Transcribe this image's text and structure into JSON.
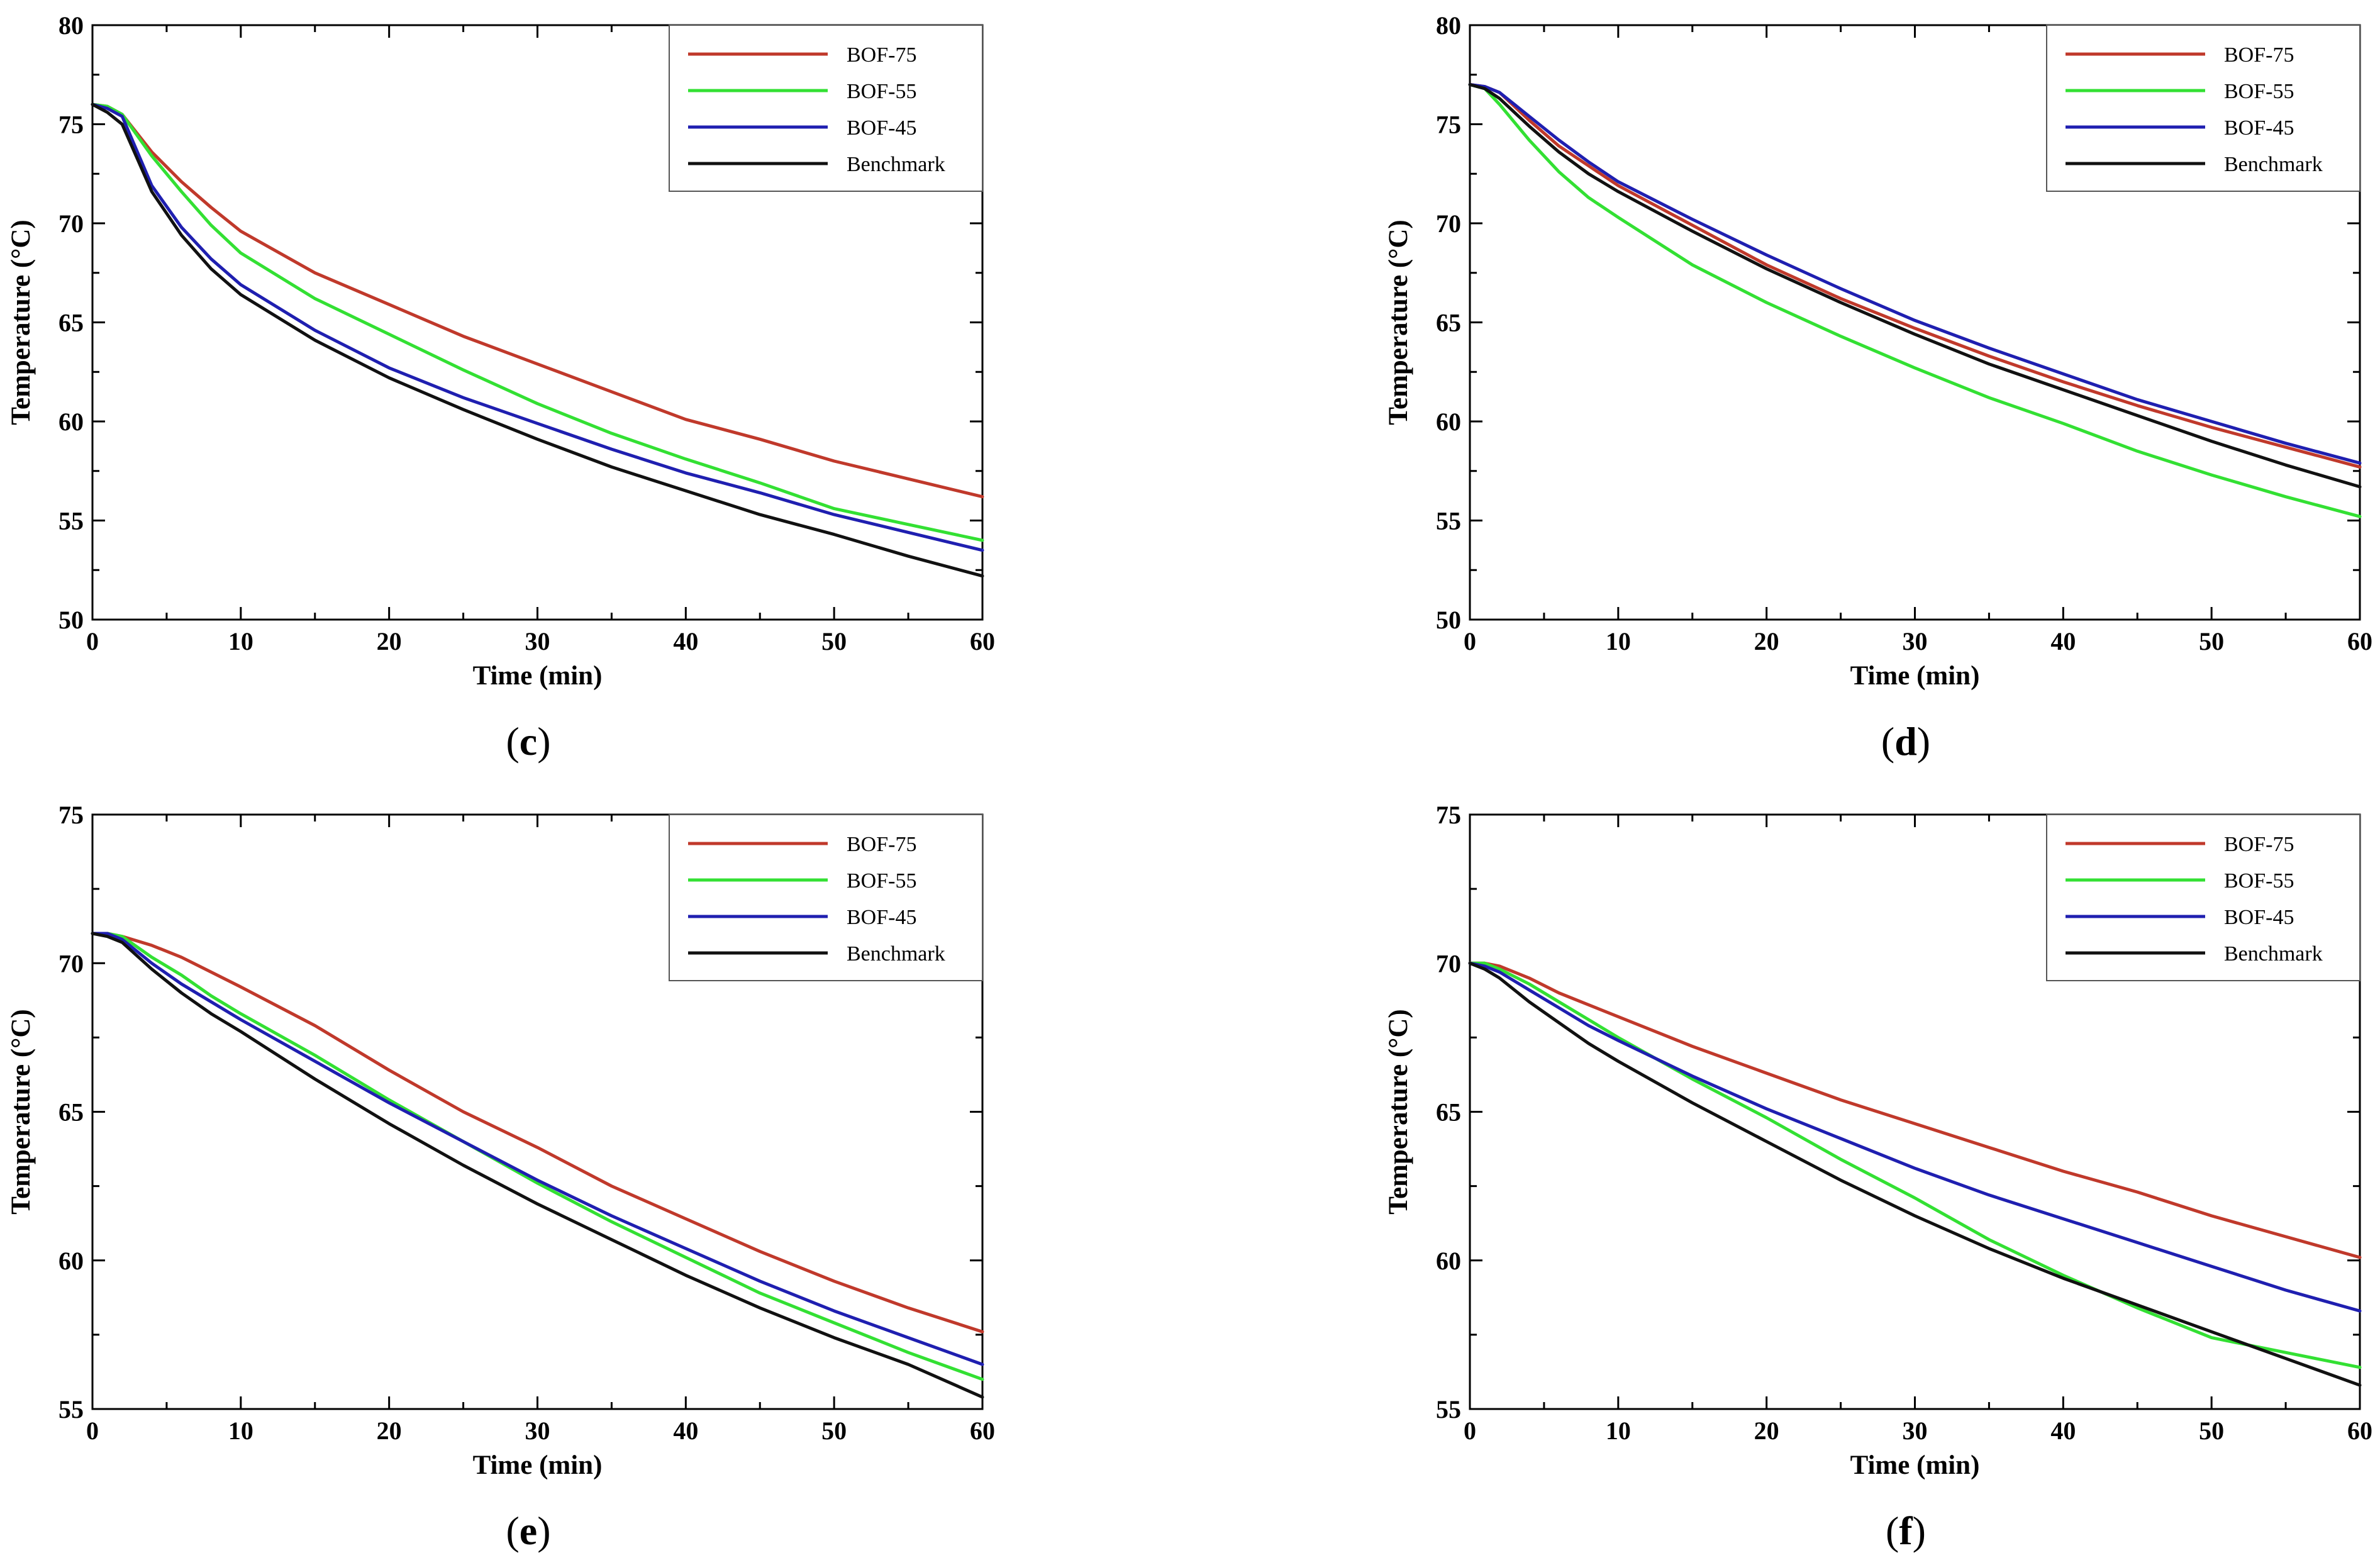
{
  "chart_data": [
    {
      "type": "line",
      "panel": "c",
      "title": "",
      "xlabel": "Time (min)",
      "ylabel": "Temperature (°C)",
      "xlim": [
        0,
        60
      ],
      "ylim": [
        50,
        80
      ],
      "xticks": [
        0,
        10,
        20,
        30,
        40,
        50,
        60
      ],
      "yticks": [
        50,
        55,
        60,
        65,
        70,
        75,
        80
      ],
      "grid": false,
      "legend_position": "top-right",
      "x": [
        0,
        1,
        2,
        4,
        6,
        8,
        10,
        15,
        20,
        25,
        30,
        35,
        40,
        45,
        50,
        55,
        60
      ],
      "series": [
        {
          "name": "BOF-75",
          "color": "#c0392b",
          "values": [
            76.0,
            75.9,
            75.5,
            73.6,
            72.1,
            70.8,
            69.6,
            67.5,
            65.9,
            64.3,
            62.9,
            61.5,
            60.1,
            59.1,
            58.0,
            57.1,
            56.2
          ]
        },
        {
          "name": "BOF-55",
          "color": "#33e033",
          "values": [
            76.0,
            75.9,
            75.5,
            73.4,
            71.6,
            69.9,
            68.5,
            66.2,
            64.4,
            62.6,
            60.9,
            59.4,
            58.1,
            56.9,
            55.6,
            54.8,
            54.0
          ]
        },
        {
          "name": "BOF-45",
          "color": "#1f1fb0",
          "values": [
            76.0,
            75.8,
            75.4,
            71.9,
            69.8,
            68.2,
            66.9,
            64.6,
            62.7,
            61.2,
            59.9,
            58.6,
            57.4,
            56.4,
            55.3,
            54.4,
            53.5
          ]
        },
        {
          "name": "Benchmark",
          "color": "#111111",
          "values": [
            76.0,
            75.6,
            75.0,
            71.6,
            69.4,
            67.7,
            66.4,
            64.1,
            62.2,
            60.6,
            59.1,
            57.7,
            56.5,
            55.3,
            54.3,
            53.2,
            52.2
          ]
        }
      ]
    },
    {
      "type": "line",
      "panel": "d",
      "title": "",
      "xlabel": "Time (min)",
      "ylabel": "Temperature (°C)",
      "xlim": [
        0,
        60
      ],
      "ylim": [
        50,
        80
      ],
      "xticks": [
        0,
        10,
        20,
        30,
        40,
        50,
        60
      ],
      "yticks": [
        50,
        55,
        60,
        65,
        70,
        75,
        80
      ],
      "grid": false,
      "legend_position": "top-right",
      "x": [
        0,
        1,
        2,
        4,
        6,
        8,
        10,
        15,
        20,
        25,
        30,
        35,
        40,
        45,
        50,
        55,
        60
      ],
      "series": [
        {
          "name": "BOF-75",
          "color": "#c0392b",
          "values": [
            77.0,
            76.9,
            76.6,
            75.2,
            73.9,
            72.9,
            71.9,
            69.9,
            67.9,
            66.2,
            64.7,
            63.3,
            62.0,
            60.8,
            59.7,
            58.7,
            57.7
          ]
        },
        {
          "name": "BOF-55",
          "color": "#33e033",
          "values": [
            77.0,
            76.8,
            76.0,
            74.2,
            72.6,
            71.3,
            70.3,
            67.9,
            66.0,
            64.3,
            62.7,
            61.2,
            59.9,
            58.5,
            57.3,
            56.2,
            55.2
          ]
        },
        {
          "name": "BOF-45",
          "color": "#1f1fb0",
          "values": [
            77.0,
            76.9,
            76.6,
            75.4,
            74.2,
            73.1,
            72.1,
            70.2,
            68.4,
            66.7,
            65.1,
            63.7,
            62.4,
            61.1,
            60.0,
            58.9,
            57.9
          ]
        },
        {
          "name": "Benchmark",
          "color": "#111111",
          "values": [
            77.0,
            76.8,
            76.3,
            74.9,
            73.6,
            72.5,
            71.6,
            69.6,
            67.7,
            66.0,
            64.4,
            62.9,
            61.6,
            60.3,
            59.0,
            57.8,
            56.7
          ]
        }
      ]
    },
    {
      "type": "line",
      "panel": "e",
      "title": "",
      "xlabel": "Time (min)",
      "ylabel": "Temperature (°C)",
      "xlim": [
        0,
        60
      ],
      "ylim": [
        55,
        75
      ],
      "xticks": [
        0,
        10,
        20,
        30,
        40,
        50,
        60
      ],
      "yticks": [
        55,
        60,
        65,
        70,
        75
      ],
      "grid": false,
      "legend_position": "top-right",
      "x": [
        0,
        1,
        2,
        4,
        6,
        8,
        10,
        15,
        20,
        25,
        30,
        35,
        40,
        45,
        50,
        55,
        60
      ],
      "series": [
        {
          "name": "BOF-75",
          "color": "#c0392b",
          "values": [
            71.0,
            71.0,
            70.9,
            70.6,
            70.2,
            69.7,
            69.2,
            67.9,
            66.4,
            65.0,
            63.8,
            62.5,
            61.4,
            60.3,
            59.3,
            58.4,
            57.6
          ]
        },
        {
          "name": "BOF-55",
          "color": "#33e033",
          "values": [
            71.0,
            71.0,
            70.9,
            70.2,
            69.6,
            68.9,
            68.3,
            66.9,
            65.4,
            64.0,
            62.6,
            61.3,
            60.1,
            58.9,
            57.9,
            56.9,
            56.0
          ]
        },
        {
          "name": "BOF-45",
          "color": "#1f1fb0",
          "values": [
            71.0,
            71.0,
            70.8,
            70.0,
            69.3,
            68.7,
            68.1,
            66.7,
            65.3,
            64.0,
            62.7,
            61.5,
            60.4,
            59.3,
            58.3,
            57.4,
            56.5
          ]
        },
        {
          "name": "Benchmark",
          "color": "#111111",
          "values": [
            71.0,
            70.9,
            70.7,
            69.8,
            69.0,
            68.3,
            67.7,
            66.1,
            64.6,
            63.2,
            61.9,
            60.7,
            59.5,
            58.4,
            57.4,
            56.5,
            55.4
          ]
        }
      ]
    },
    {
      "type": "line",
      "panel": "f",
      "title": "",
      "xlabel": "Time (min)",
      "ylabel": "Temperature (°C)",
      "xlim": [
        0,
        60
      ],
      "ylim": [
        55,
        75
      ],
      "xticks": [
        0,
        10,
        20,
        30,
        40,
        50,
        60
      ],
      "yticks": [
        55,
        60,
        65,
        70,
        75
      ],
      "grid": false,
      "legend_position": "top-right",
      "x": [
        0,
        1,
        2,
        4,
        6,
        8,
        10,
        15,
        20,
        25,
        30,
        35,
        40,
        45,
        50,
        55,
        60
      ],
      "series": [
        {
          "name": "BOF-75",
          "color": "#c0392b",
          "values": [
            70.0,
            70.0,
            69.9,
            69.5,
            69.0,
            68.6,
            68.2,
            67.2,
            66.3,
            65.4,
            64.6,
            63.8,
            63.0,
            62.3,
            61.5,
            60.8,
            60.1
          ]
        },
        {
          "name": "BOF-55",
          "color": "#33e033",
          "values": [
            70.0,
            70.0,
            69.8,
            69.3,
            68.7,
            68.1,
            67.5,
            66.1,
            64.8,
            63.4,
            62.1,
            60.7,
            59.5,
            58.4,
            57.4,
            56.9,
            56.4
          ]
        },
        {
          "name": "BOF-45",
          "color": "#1f1fb0",
          "values": [
            70.0,
            69.9,
            69.7,
            69.1,
            68.5,
            67.9,
            67.4,
            66.2,
            65.1,
            64.1,
            63.1,
            62.2,
            61.4,
            60.6,
            59.8,
            59.0,
            58.3
          ]
        },
        {
          "name": "Benchmark",
          "color": "#111111",
          "values": [
            70.0,
            69.8,
            69.5,
            68.7,
            68.0,
            67.3,
            66.7,
            65.3,
            64.0,
            62.7,
            61.5,
            60.4,
            59.4,
            58.5,
            57.6,
            56.7,
            55.8
          ]
        }
      ]
    }
  ],
  "panel_labels": [
    "(c)",
    "(d)",
    "(e)",
    "(f)"
  ]
}
